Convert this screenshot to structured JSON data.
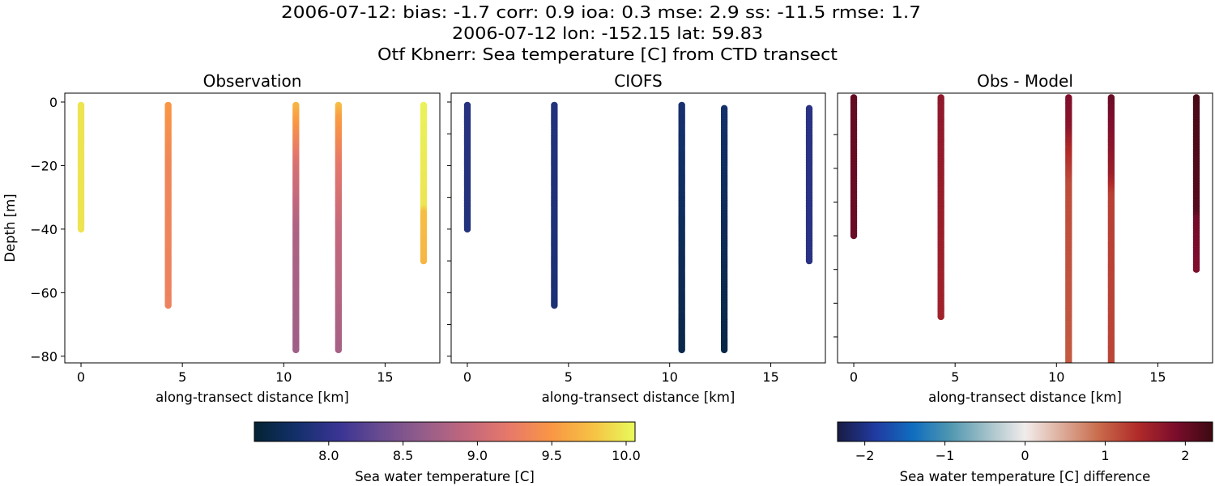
{
  "title_lines": [
    "2006-07-12: bias: -1.7  corr: 0.9  ioa: 0.3  mse: 2.9  ss: -11.5  rmse: 1.7",
    "2006-07-12 lon: -152.15 lat: 59.83",
    "Otf Kbnerr: Sea temperature [C] from CTD transect"
  ],
  "chart_data": [
    {
      "type": "scatter",
      "title": "Observation",
      "xlabel": "along-transect distance [km]",
      "ylabel": "Depth [m]",
      "xlim": [
        -0.8,
        17.7
      ],
      "ylim": [
        -82.1,
        2.8
      ],
      "xticks": [
        0,
        5,
        10,
        15
      ],
      "yticks": [
        0,
        -20,
        -40,
        -60,
        -80
      ],
      "ytick_labels": [
        "0",
        "−20",
        "−40",
        "−60",
        "−80"
      ],
      "xtick_labels": [
        "0",
        "5",
        "10",
        "15"
      ],
      "colormap": "thermal",
      "clim": [
        7.5,
        10.06
      ],
      "profiles": [
        {
          "x": 0.0,
          "top": -1,
          "bottom": -40,
          "anchors": [
            [
              -1,
              9.95
            ],
            [
              -40,
              9.95
            ]
          ]
        },
        {
          "x": 4.3,
          "top": -1,
          "bottom": -64,
          "anchors": [
            [
              -1,
              9.5
            ],
            [
              -20,
              9.35
            ],
            [
              -64,
              9.3
            ]
          ]
        },
        {
          "x": 10.6,
          "top": -1,
          "bottom": -78,
          "anchors": [
            [
              -1,
              9.7
            ],
            [
              -10,
              9.4
            ],
            [
              -20,
              9.1
            ],
            [
              -40,
              8.8
            ],
            [
              -78,
              8.7
            ]
          ]
        },
        {
          "x": 12.7,
          "top": -1,
          "bottom": -78,
          "anchors": [
            [
              -1,
              9.75
            ],
            [
              -5,
              9.55
            ],
            [
              -20,
              9.2
            ],
            [
              -40,
              8.95
            ],
            [
              -78,
              8.75
            ]
          ]
        },
        {
          "x": 16.9,
          "top": -1,
          "bottom": -50,
          "anchors": [
            [
              -1,
              10.02
            ],
            [
              -33,
              9.95
            ],
            [
              -35,
              9.75
            ],
            [
              -50,
              9.7
            ]
          ]
        }
      ]
    },
    {
      "type": "scatter",
      "title": "CIOFS",
      "xlabel": "along-transect distance [km]",
      "xlim": [
        -0.8,
        17.7
      ],
      "ylim": [
        -82.1,
        2.8
      ],
      "xticks": [
        0,
        5,
        10,
        15
      ],
      "xtick_labels": [
        "0",
        "5",
        "10",
        "15"
      ],
      "yticks": [
        0,
        -10,
        -20,
        -30,
        -40,
        -50,
        -60,
        -70,
        -80
      ],
      "colormap": "thermal",
      "clim": [
        7.5,
        10.06
      ],
      "profiles": [
        {
          "x": 0.0,
          "top": -1,
          "bottom": -40,
          "anchors": [
            [
              -1,
              7.93
            ],
            [
              -40,
              7.9
            ]
          ]
        },
        {
          "x": 4.3,
          "top": -1,
          "bottom": -64,
          "anchors": [
            [
              -1,
              7.9
            ],
            [
              -64,
              7.85
            ]
          ]
        },
        {
          "x": 10.6,
          "top": -1,
          "bottom": -78,
          "anchors": [
            [
              -1,
              7.82
            ],
            [
              -40,
              7.7
            ],
            [
              -78,
              7.62
            ]
          ]
        },
        {
          "x": 12.7,
          "top": -2,
          "bottom": -78,
          "anchors": [
            [
              -2,
              7.78
            ],
            [
              -40,
              7.68
            ],
            [
              -78,
              7.6
            ]
          ]
        },
        {
          "x": 16.9,
          "top": -2,
          "bottom": -50,
          "anchors": [
            [
              -2,
              7.95
            ],
            [
              -50,
              7.95
            ]
          ]
        }
      ]
    },
    {
      "type": "scatter",
      "title": "Obs - Model",
      "xlabel": "along-transect distance [km]",
      "xlim": [
        -0.8,
        17.7
      ],
      "ylim": [
        -77.7,
        2.3
      ],
      "xticks": [
        0,
        5,
        10,
        15
      ],
      "xtick_labels": [
        "0",
        "5",
        "10",
        "15"
      ],
      "yticks": [
        -10,
        -20,
        -30,
        -40,
        -50,
        -60,
        -70
      ],
      "colormap": "balance",
      "clim": [
        -2.34,
        2.34
      ],
      "profiles": [
        {
          "x": 0.0,
          "top": 1,
          "bottom": -40,
          "anchors": [
            [
              1,
              2.05
            ],
            [
              -40,
              2.0
            ]
          ]
        },
        {
          "x": 4.3,
          "top": 1,
          "bottom": -64,
          "anchors": [
            [
              1,
              1.7
            ],
            [
              -30,
              1.62
            ],
            [
              -64,
              1.55
            ]
          ]
        },
        {
          "x": 10.6,
          "top": 1,
          "bottom": -80,
          "anchors": [
            [
              1,
              1.85
            ],
            [
              -8,
              1.75
            ],
            [
              -14,
              1.45
            ],
            [
              -25,
              1.15
            ],
            [
              -80,
              1.05
            ]
          ]
        },
        {
          "x": 12.7,
          "top": 1,
          "bottom": -80,
          "anchors": [
            [
              1,
              2.0
            ],
            [
              -10,
              1.8
            ],
            [
              -22,
              1.6
            ],
            [
              -28,
              1.25
            ],
            [
              -80,
              1.2
            ]
          ]
        },
        {
          "x": 16.9,
          "top": 1,
          "bottom": -50,
          "anchors": [
            [
              1,
              2.25
            ],
            [
              -33,
              2.15
            ],
            [
              -35,
              1.95
            ],
            [
              -50,
              1.85
            ]
          ]
        }
      ]
    }
  ],
  "colorbars": [
    {
      "label": "Sea water temperature [C]",
      "ticks": [
        8.0,
        8.5,
        9.0,
        9.5,
        10.0
      ],
      "tick_labels": [
        "8.0",
        "8.5",
        "9.0",
        "9.5",
        "10.0"
      ],
      "range": [
        7.5,
        10.06
      ],
      "colormap": "thermal"
    },
    {
      "label": "Sea water temperature [C] difference",
      "ticks": [
        -2,
        -1,
        0,
        1,
        2
      ],
      "tick_labels": [
        "−2",
        "−1",
        "0",
        "1",
        "2"
      ],
      "range": [
        -2.34,
        2.34
      ],
      "colormap": "balance"
    }
  ],
  "colormaps": {
    "thermal": [
      "#042333",
      "#13306b",
      "#3a3494",
      "#6a4c90",
      "#955d8a",
      "#c1677d",
      "#e6786a",
      "#f99545",
      "#f6c244",
      "#e8fa5b"
    ],
    "balance": [
      "#181c43",
      "#213aa0",
      "#0f6dbf",
      "#4f97b0",
      "#a3c1c9",
      "#f1ecec",
      "#dcab98",
      "#c8694a",
      "#b02b29",
      "#7c0d2c",
      "#3c0912"
    ]
  }
}
